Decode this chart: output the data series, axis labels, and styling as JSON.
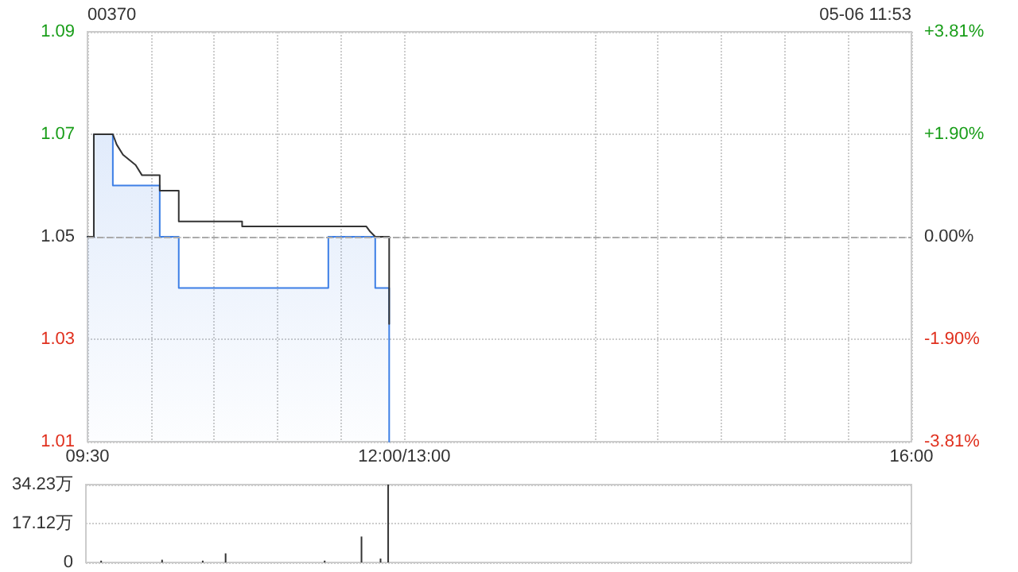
{
  "chart_data": [
    {
      "type": "line",
      "title": "00370",
      "annotations": [
        "05-06 11:53"
      ],
      "series": [
        {
          "type": "area",
          "color": "#3d7fe6",
          "x": [
            9.5,
            9.55,
            9.55,
            9.7,
            9.7,
            10.07,
            10.07,
            10.22,
            10.22,
            11.4,
            11.4,
            11.77,
            11.77,
            11.88,
            11.88
          ],
          "values": [
            1.05,
            1.05,
            1.07,
            1.07,
            1.06,
            1.06,
            1.05,
            1.05,
            1.04,
            1.04,
            1.05,
            1.05,
            1.04,
            1.04,
            1.01
          ]
        },
        {
          "color": "#333333",
          "x": [
            9.5,
            9.55,
            9.55,
            9.7,
            9.73,
            9.78,
            9.83,
            9.88,
            9.93,
            10.07,
            10.07,
            10.22,
            10.22,
            10.72,
            10.72,
            11.7,
            11.73,
            11.77,
            11.88,
            11.88
          ],
          "values": [
            1.05,
            1.05,
            1.07,
            1.07,
            1.068,
            1.066,
            1.065,
            1.064,
            1.062,
            1.062,
            1.059,
            1.059,
            1.053,
            1.053,
            1.052,
            1.052,
            1.051,
            1.05,
            1.05,
            1.033
          ]
        }
      ],
      "xlim": [
        9.5,
        16
      ],
      "xticks": [
        {
          "value": 9.5,
          "label": "09:30"
        },
        {
          "value": 10,
          "label": null
        },
        {
          "value": 10.5,
          "label": null
        },
        {
          "value": 11,
          "label": null
        },
        {
          "value": 11.5,
          "label": null
        },
        {
          "value": 12,
          "label": "12:00/13:00"
        },
        {
          "value": 13.5,
          "label": null
        },
        {
          "value": 14,
          "label": null
        },
        {
          "value": 14.5,
          "label": null
        },
        {
          "value": 15,
          "label": null
        },
        {
          "value": 15.5,
          "label": null
        },
        {
          "value": 16,
          "label": "16:00"
        }
      ],
      "ylim": [
        1.01,
        1.09
      ],
      "yticks": [
        1.01,
        1.03,
        1.05,
        1.07,
        1.09
      ],
      "y2lim": [
        -3.81,
        3.81
      ],
      "y2ticks": [
        {
          "value": -3.81,
          "label": "-3.81%"
        },
        {
          "value": -1.9,
          "label": "-1.90%"
        },
        {
          "value": 0,
          "label": "0.00%"
        },
        {
          "value": 1.9,
          "label": "+1.90%"
        },
        {
          "value": 3.81,
          "label": "+3.81%"
        }
      ],
      "ref_lines": [
        {
          "axis": "y",
          "value": 1.05,
          "line_style": "dashed",
          "color": "#aaaaaa"
        }
      ],
      "grid": true,
      "marker": "none",
      "line_style": "solid"
    },
    {
      "type": "bar",
      "color": "#333333",
      "x": [
        9.62,
        10.1,
        10.42,
        10.6,
        11.38,
        11.67,
        11.82,
        11.88
      ],
      "values": [
        0.8,
        1.2,
        0.8,
        4,
        0.8,
        11.4,
        1.7,
        34.23
      ],
      "xlim": [
        9.5,
        16
      ],
      "ylim": [
        0,
        34.23
      ],
      "yticks": [
        {
          "value": 0,
          "label": "0"
        },
        {
          "value": 17.12,
          "label": "17.12万"
        },
        {
          "value": 34.23,
          "label": "34.23万"
        }
      ],
      "tick_labels": "y",
      "grid": "y"
    }
  ]
}
